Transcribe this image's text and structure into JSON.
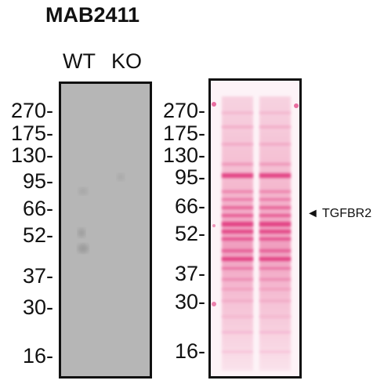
{
  "title": "MAB2411",
  "lanes": [
    "WT",
    "KO"
  ],
  "markers": [
    "270",
    "175",
    "130",
    "95",
    "66",
    "52",
    "37",
    "30",
    "16"
  ],
  "band_arrow": "◄",
  "band_label": "TGFBR2",
  "colors": {
    "blot_background": "#b6b6b6",
    "ponceau_background": "#fdf3f7",
    "ponceau_band": "#e0337a"
  }
}
